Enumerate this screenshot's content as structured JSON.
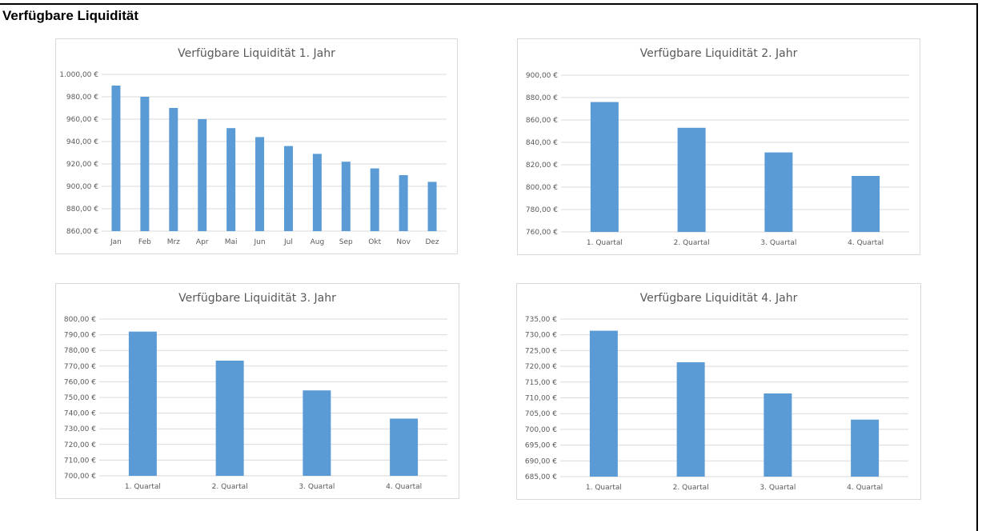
{
  "page": {
    "title": "Verfügbare Liquidität"
  },
  "colors": {
    "bar": "#5b9bd5",
    "grid": "#d9d9d9",
    "text": "#595959",
    "axis": "#bfbfbf"
  },
  "chart_data": [
    {
      "type": "bar",
      "title": "Verfügbare Liquidität 1. Jahr",
      "categories": [
        "Jan",
        "Feb",
        "Mrz",
        "Apr",
        "Mai",
        "Jun",
        "Jul",
        "Aug",
        "Sep",
        "Okt",
        "Nov",
        "Dez"
      ],
      "values": [
        990,
        980,
        970,
        960,
        952,
        944,
        936,
        929,
        922,
        916,
        910,
        904
      ],
      "ylim": [
        860,
        1000
      ],
      "yticks": [
        "860,00 €",
        "880,00 €",
        "900,00 €",
        "920,00 €",
        "940,00 €",
        "960,00 €",
        "980,00 €",
        "1.000,00 €"
      ],
      "grid": true,
      "legend": "none"
    },
    {
      "type": "bar",
      "title": "Verfügbare Liquidität 2. Jahr",
      "categories": [
        "1. Quartal",
        "2. Quartal",
        "3. Quartal",
        "4. Quartal"
      ],
      "values": [
        876,
        853,
        831,
        810
      ],
      "ylim": [
        760,
        900
      ],
      "yticks": [
        "760,00 €",
        "780,00 €",
        "800,00 €",
        "820,00 €",
        "840,00 €",
        "860,00 €",
        "880,00 €",
        "900,00 €"
      ],
      "grid": true,
      "legend": "none"
    },
    {
      "type": "bar",
      "title": "Verfügbare Liquidität 3. Jahr",
      "categories": [
        "1. Quartal",
        "2. Quartal",
        "3. Quartal",
        "4. Quartal"
      ],
      "values": [
        792,
        773.5,
        754.5,
        736.5
      ],
      "ylim": [
        700,
        800
      ],
      "yticks": [
        "700,00 €",
        "710,00 €",
        "720,00 €",
        "730,00 €",
        "740,00 €",
        "750,00 €",
        "760,00 €",
        "770,00 €",
        "780,00 €",
        "790,00 €",
        "800,00 €"
      ],
      "grid": true,
      "legend": "none"
    },
    {
      "type": "bar",
      "title": "Verfügbare Liquidität 4. Jahr",
      "categories": [
        "1. Quartal",
        "2. Quartal",
        "3. Quartal",
        "4. Quartal"
      ],
      "values": [
        731.3,
        721.3,
        711.4,
        703.1
      ],
      "ylim": [
        685,
        735
      ],
      "yticks": [
        "685,00 €",
        "690,00 €",
        "695,00 €",
        "700,00 €",
        "705,00 €",
        "710,00 €",
        "715,00 €",
        "720,00 €",
        "725,00 €",
        "730,00 €",
        "735,00 €"
      ],
      "grid": true,
      "legend": "none"
    }
  ]
}
